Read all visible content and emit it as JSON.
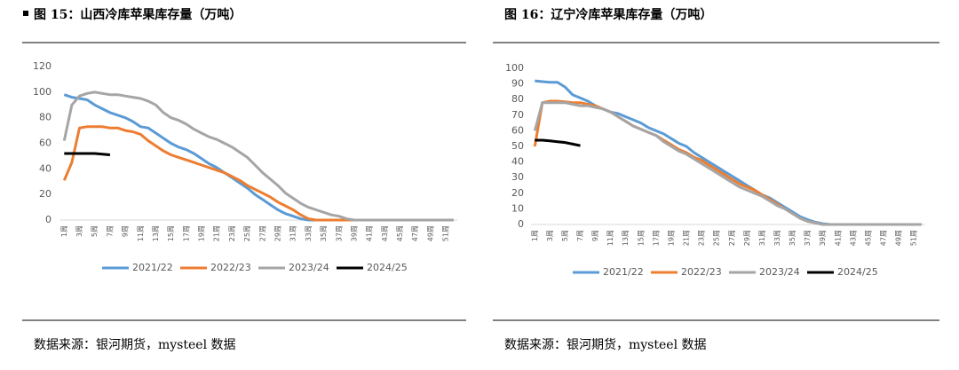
{
  "chart_data": [
    {
      "type": "line",
      "title": "图 15：山西冷库苹果库存量（万吨）",
      "source": "数据来源：银河期货，mysteel 数据",
      "categories": [
        "1周",
        null,
        "3周",
        null,
        "5周",
        null,
        "7周",
        null,
        "9周",
        null,
        "11周",
        null,
        "13周",
        null,
        "15周",
        null,
        "17周",
        null,
        "19周",
        null,
        "21周",
        null,
        "23周",
        null,
        "25周",
        null,
        "27周",
        null,
        "29周",
        null,
        "31周",
        null,
        "33周",
        null,
        "35周",
        null,
        "37周",
        null,
        "39周",
        null,
        "41周",
        null,
        "43周",
        null,
        "45周",
        null,
        "47周",
        null,
        "49周",
        null,
        "51周",
        null
      ],
      "ylim": [
        0,
        120
      ],
      "yticks": [
        0,
        20,
        40,
        60,
        80,
        100,
        120
      ],
      "series": [
        {
          "name": "2021/22",
          "color": "#5b9bd5",
          "values": [
            98,
            96,
            95,
            94,
            90,
            87,
            84,
            82,
            80,
            77,
            73,
            72,
            68,
            64,
            60,
            57,
            55,
            52,
            48,
            44,
            41,
            37,
            33,
            29,
            25,
            20,
            16,
            12,
            8,
            5,
            3,
            1,
            0,
            0,
            0,
            0,
            0,
            0,
            0,
            0,
            0,
            0,
            0,
            0,
            0,
            0,
            0,
            0,
            0,
            0,
            0,
            0
          ]
        },
        {
          "name": "2022/23",
          "color": "#ed7d31",
          "values": [
            31,
            45,
            72,
            73,
            73,
            73,
            72,
            72,
            70,
            69,
            67,
            62,
            58,
            54,
            51,
            49,
            47,
            45,
            43,
            41,
            39,
            37,
            34,
            31,
            27,
            24,
            21,
            18,
            14,
            11,
            8,
            4,
            1,
            0,
            0,
            0,
            0,
            0,
            0,
            0,
            0,
            0,
            0,
            0,
            0,
            0,
            0,
            0,
            0,
            0,
            0,
            0
          ]
        },
        {
          "name": "2023/24",
          "color": "#a5a5a5",
          "values": [
            62,
            90,
            97,
            99,
            100,
            99,
            98,
            98,
            97,
            96,
            95,
            93,
            90,
            84,
            80,
            78,
            75,
            71,
            68,
            65,
            63,
            60,
            57,
            53,
            49,
            43,
            37,
            32,
            27,
            21,
            17,
            13,
            10,
            8,
            6,
            4,
            3,
            1,
            0,
            0,
            0,
            0,
            0,
            0,
            0,
            0,
            0,
            0,
            0,
            0,
            0,
            0
          ]
        },
        {
          "name": "2024/25",
          "color": "#000000",
          "values": [
            52,
            52,
            52,
            52,
            52,
            51.5,
            51,
            null,
            null,
            null,
            null,
            null,
            null,
            null,
            null,
            null,
            null,
            null,
            null,
            null,
            null,
            null,
            null,
            null,
            null,
            null,
            null,
            null,
            null,
            null,
            null,
            null,
            null,
            null,
            null,
            null,
            null,
            null,
            null,
            null,
            null,
            null,
            null,
            null,
            null,
            null,
            null,
            null,
            null,
            null,
            null,
            null
          ]
        }
      ]
    },
    {
      "type": "line",
      "title": "图 16：辽宁冷库苹果库存量（万吨）",
      "source": "数据来源：银河期货，mysteel 数据",
      "categories": [
        "1周",
        null,
        "3周",
        null,
        "5周",
        null,
        "7周",
        null,
        "9周",
        null,
        "11周",
        null,
        "13周",
        null,
        "15周",
        null,
        "17周",
        null,
        "19周",
        null,
        "21周",
        null,
        "23周",
        null,
        "25周",
        null,
        "27周",
        null,
        "29周",
        null,
        "31周",
        null,
        "33周",
        null,
        "35周",
        null,
        "37周",
        null,
        "39周",
        null,
        "41周",
        null,
        "43周",
        null,
        "45周",
        null,
        "47周",
        null,
        "49周",
        null,
        "51周",
        null
      ],
      "ylim": [
        0,
        100
      ],
      "yticks": [
        0,
        10,
        20,
        30,
        40,
        50,
        60,
        70,
        80,
        90,
        100
      ],
      "series": [
        {
          "name": "2021/22",
          "color": "#5b9bd5",
          "values": [
            92,
            91.5,
            91,
            91,
            88,
            83,
            81,
            79,
            76,
            74,
            72,
            71,
            69,
            67,
            65,
            62,
            60,
            58,
            55,
            52,
            50,
            46,
            43,
            40,
            37,
            34,
            31,
            28,
            25,
            22,
            19,
            17,
            14,
            11,
            8,
            5,
            3,
            1.5,
            0.5,
            0,
            0,
            0,
            0,
            0,
            0,
            0,
            0,
            0,
            0,
            0,
            0,
            0
          ]
        },
        {
          "name": "2022/23",
          "color": "#ed7d31",
          "values": [
            50,
            78,
            79,
            79,
            78.5,
            78,
            78,
            77,
            76,
            74,
            72,
            69,
            66,
            63,
            61,
            59,
            57,
            54,
            51,
            48,
            46,
            43,
            41,
            38,
            35,
            32,
            29,
            26,
            24,
            22,
            19,
            16,
            13,
            10,
            7,
            4,
            2,
            1,
            0,
            0,
            0,
            0,
            0,
            0,
            0,
            0,
            0,
            0,
            0,
            0,
            0,
            0
          ]
        },
        {
          "name": "2023/24",
          "color": "#a5a5a5",
          "values": [
            60,
            78,
            78,
            78,
            78,
            77,
            76,
            76,
            75,
            74,
            72,
            69,
            66,
            63,
            61,
            59,
            57,
            53,
            50,
            47,
            45,
            42,
            39,
            36,
            33,
            30,
            27,
            24,
            22,
            20,
            18,
            15,
            12,
            10,
            7,
            4,
            2,
            1,
            0,
            0,
            0,
            0,
            0,
            0,
            0,
            0,
            0,
            0,
            0,
            0,
            0,
            0
          ]
        },
        {
          "name": "2024/25",
          "color": "#000000",
          "values": [
            54,
            54,
            53.5,
            53,
            52.5,
            51.5,
            50.5,
            null,
            null,
            null,
            null,
            null,
            null,
            null,
            null,
            null,
            null,
            null,
            null,
            null,
            null,
            null,
            null,
            null,
            null,
            null,
            null,
            null,
            null,
            null,
            null,
            null,
            null,
            null,
            null,
            null,
            null,
            null,
            null,
            null,
            null,
            null,
            null,
            null,
            null,
            null,
            null,
            null,
            null,
            null,
            null,
            null
          ]
        }
      ]
    }
  ]
}
